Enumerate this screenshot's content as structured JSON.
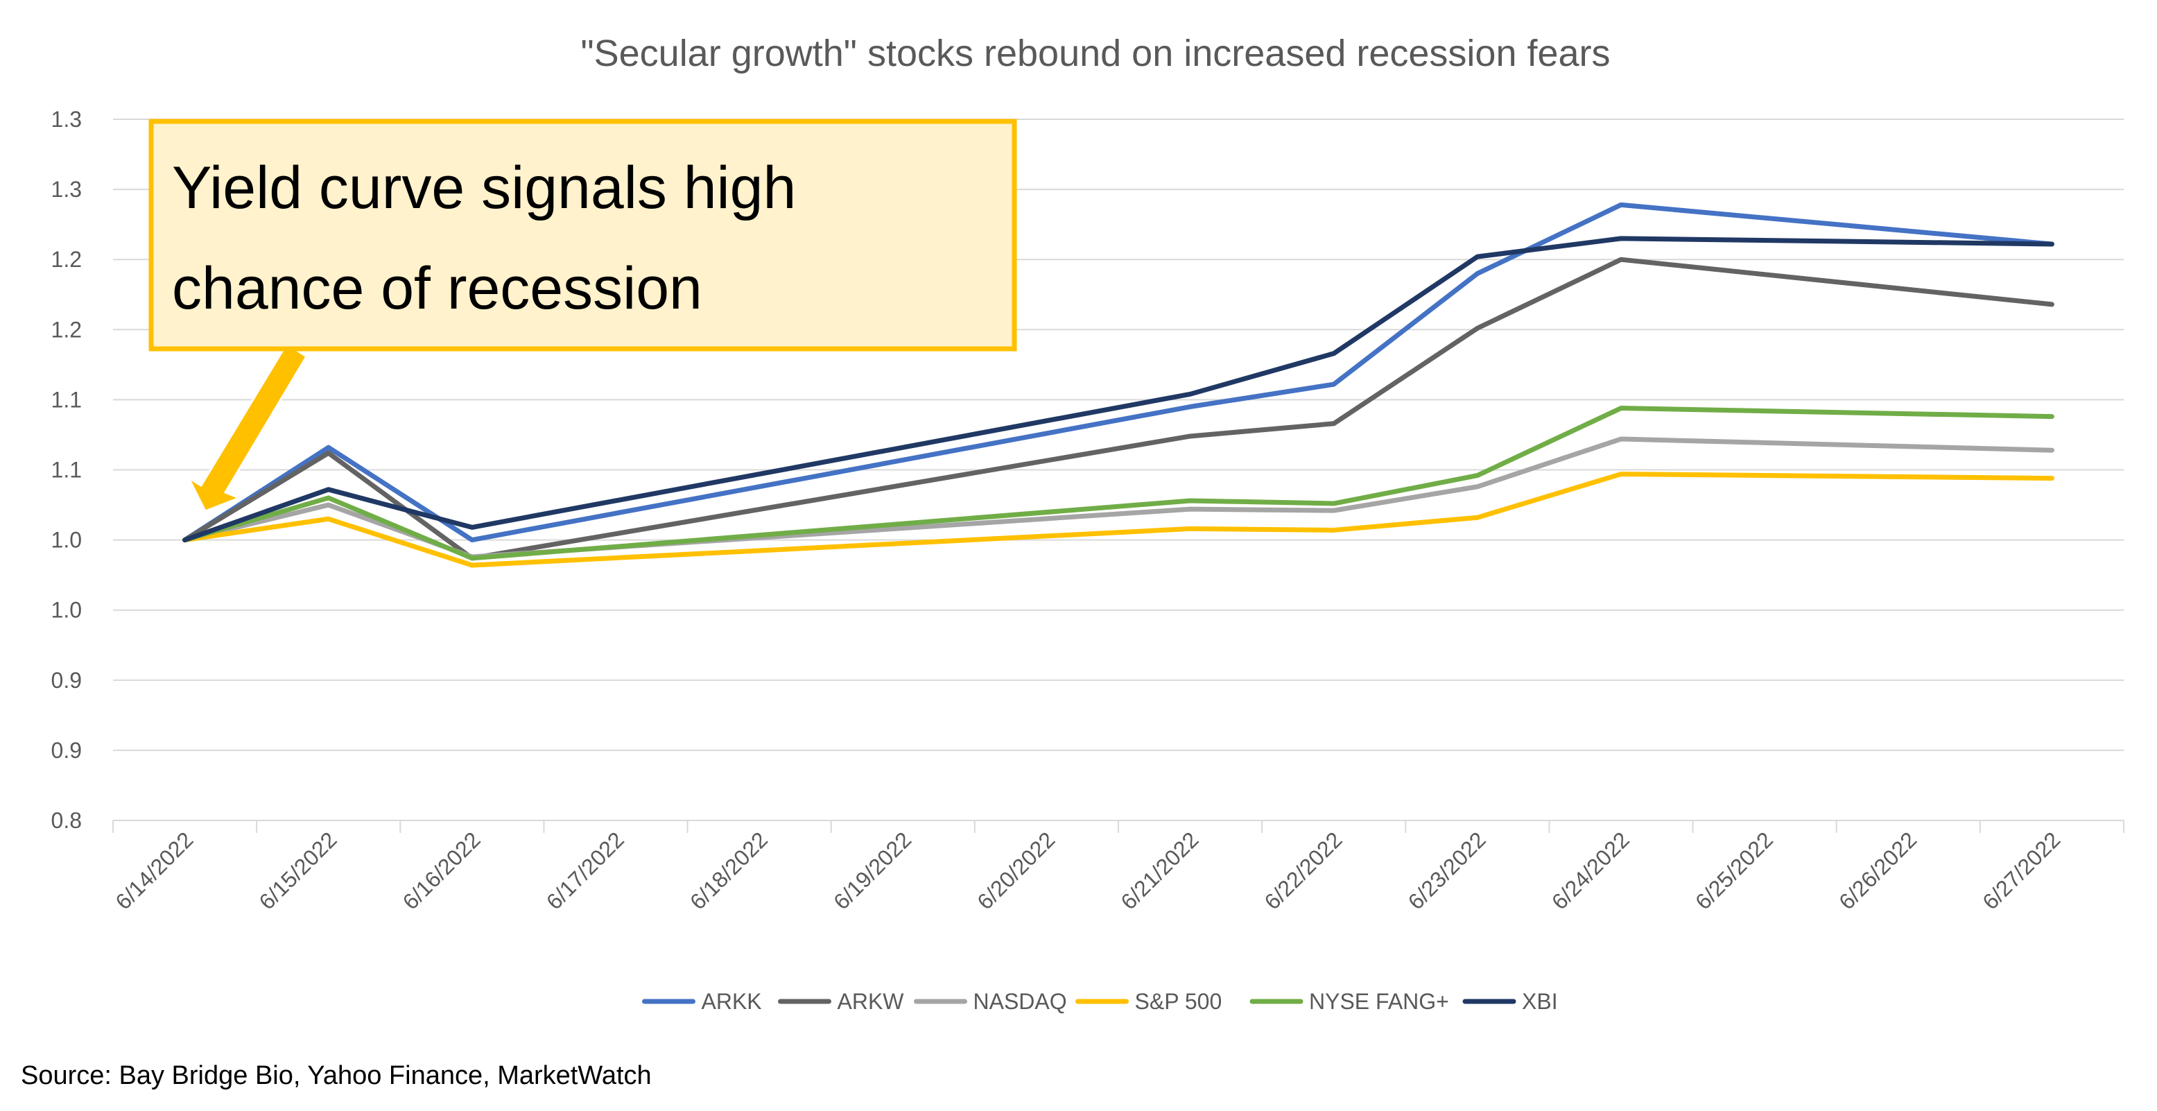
{
  "chart_data": {
    "type": "line",
    "title": "\"Secular growth\" stocks rebound on increased recession fears",
    "x": [
      "6/14/2022",
      "6/15/2022",
      "6/16/2022",
      "6/17/2022",
      "6/18/2022",
      "6/19/2022",
      "6/20/2022",
      "6/21/2022",
      "6/22/2022",
      "6/23/2022",
      "6/24/2022",
      "6/25/2022",
      "6/26/2022",
      "6/27/2022"
    ],
    "y_tick_labels": [
      "0.8",
      "0.9",
      "0.9",
      "1.0",
      "1.0",
      "1.1",
      "1.1",
      "1.2",
      "1.2",
      "1.3",
      "1.3"
    ],
    "ylim": [
      0.8,
      1.3
    ],
    "grid": true,
    "legend_position": "bottom",
    "series": [
      {
        "name": "ARKK",
        "color": "#4472c4",
        "values": [
          1.0,
          1.066,
          1.0,
          null,
          null,
          null,
          null,
          1.095,
          1.111,
          1.19,
          1.239,
          null,
          null,
          1.211
        ]
      },
      {
        "name": "ARKW",
        "color": "#636363",
        "values": [
          1.0,
          1.062,
          0.987,
          null,
          null,
          null,
          null,
          1.074,
          1.083,
          1.151,
          1.2,
          null,
          null,
          1.168
        ]
      },
      {
        "name": "NASDAQ",
        "color": "#a5a5a5",
        "values": [
          1.0,
          1.025,
          0.988,
          null,
          null,
          null,
          null,
          1.022,
          1.021,
          1.038,
          1.072,
          null,
          null,
          1.064
        ]
      },
      {
        "name": "S&P 500",
        "color": "#ffc000",
        "values": [
          1.0,
          1.015,
          0.982,
          null,
          null,
          null,
          null,
          1.008,
          1.007,
          1.016,
          1.047,
          null,
          null,
          1.044
        ]
      },
      {
        "name": "NYSE FANG+",
        "color": "#70ad47",
        "values": [
          1.0,
          1.03,
          0.987,
          null,
          null,
          null,
          null,
          1.028,
          1.026,
          1.046,
          1.094,
          null,
          null,
          1.088
        ]
      },
      {
        "name": "XBI",
        "color": "#203864",
        "values": [
          1.0,
          1.036,
          1.009,
          null,
          null,
          null,
          null,
          1.104,
          1.133,
          1.202,
          1.215,
          null,
          null,
          1.211
        ]
      }
    ]
  },
  "callout": {
    "line1": "Yield curve signals high",
    "line2": "chance of recession"
  },
  "source": "Source: Bay Bridge Bio, Yahoo Finance, MarketWatch"
}
